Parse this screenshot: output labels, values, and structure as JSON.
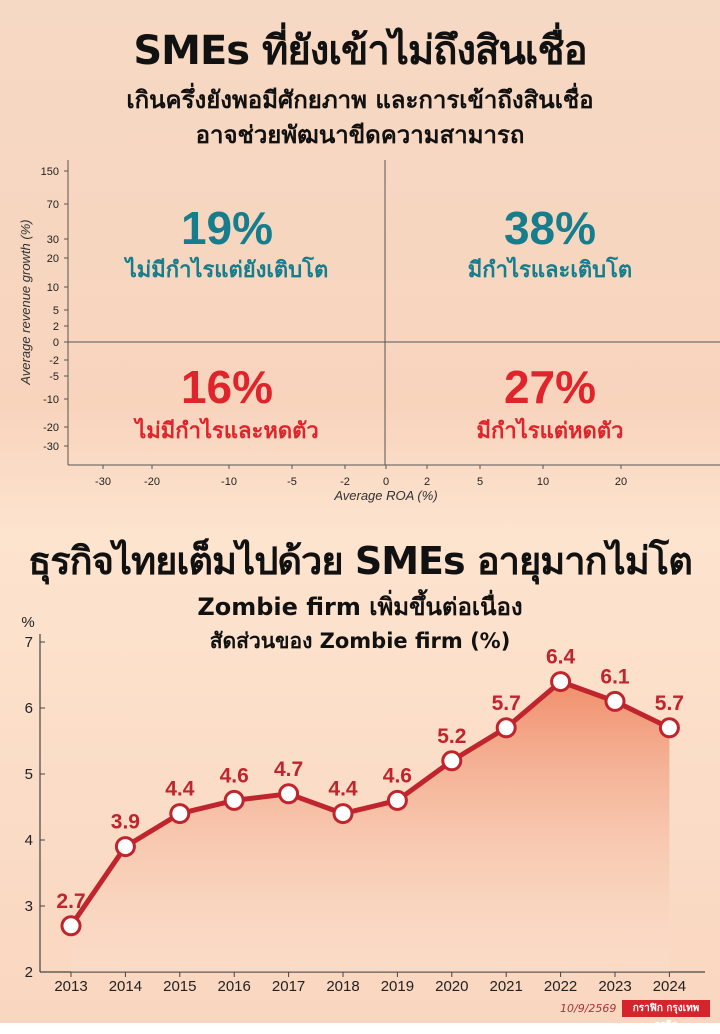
{
  "header": {
    "title": "SMEs ที่ยังเข้าไม่ถึงสินเชื่อ",
    "subtitle_line1": "เกินครึ่งยังพอมีศักยภาพ และการเข้าถึงสินเชื่อ",
    "subtitle_line2": "อาจช่วยพัฒนาขีดความสามารถ"
  },
  "section2": {
    "title": "ธุรกิจไทยเต็มไปด้วย SMEs อายุมากไม่โต",
    "subtitle_line1": "Zombie firm เพิ่มขึ้นต่อเนื่อง",
    "subtitle_line2": "สัดส่วนของ Zombie firm (%)"
  },
  "footer": {
    "date": "10/9/2569",
    "credit": "กราฟิก กรุงเทพธุรกิจ"
  },
  "colors": {
    "teal": "#157d8c",
    "red": "#e0242b",
    "line": "#c0242c",
    "area_top": "#ef8a66"
  },
  "chart_data": [
    {
      "type": "quadrant",
      "xlabel": "Average ROA (%)",
      "ylabel": "Average revenue growth (%)",
      "x_ticks": [
        "-30",
        "-20",
        "-10",
        "-5",
        "-2",
        "0",
        "2",
        "5",
        "10",
        "20"
      ],
      "y_ticks": [
        "150",
        "70",
        "30",
        "20",
        "10",
        "5",
        "2",
        "0",
        "-2",
        "-5",
        "-10",
        "-20",
        "-30"
      ],
      "quadrants": [
        {
          "position": "top-left",
          "value": "19%",
          "label": "ไม่มีกำไรแต่ยังเติบโต",
          "color": "#157d8c"
        },
        {
          "position": "top-right",
          "value": "38%",
          "label": "มีกำไรและเติบโต",
          "color": "#157d8c"
        },
        {
          "position": "bottom-left",
          "value": "16%",
          "label": "ไม่มีกำไรและหดตัว",
          "color": "#e0242b"
        },
        {
          "position": "bottom-right",
          "value": "27%",
          "label": "มีกำไรแต่หดตัว",
          "color": "#e0242b"
        }
      ]
    },
    {
      "type": "line",
      "ylabel": "%",
      "ylim": [
        2,
        7
      ],
      "y_ticks": [
        2,
        3,
        4,
        5,
        6,
        7
      ],
      "categories": [
        "2013",
        "2014",
        "2015",
        "2016",
        "2017",
        "2018",
        "2019",
        "2020",
        "2021",
        "2022",
        "2023",
        "2024"
      ],
      "values": [
        2.7,
        3.9,
        4.4,
        4.6,
        4.7,
        4.4,
        4.6,
        5.2,
        5.7,
        6.4,
        6.1,
        5.7
      ],
      "data_labels": [
        "2.7",
        "3.9",
        "4.4",
        "4.6",
        "4.7",
        "4.4",
        "4.6",
        "5.2",
        "5.7",
        "6.4",
        "6.1",
        "5.7"
      ]
    }
  ]
}
